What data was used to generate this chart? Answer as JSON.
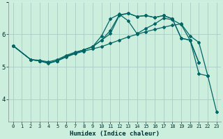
{
  "xlabel": "Humidex (Indice chaleur)",
  "bg_color": "#cceedd",
  "grid_major_color": "#aacccc",
  "grid_minor_color": "#ddf0f0",
  "line_color": "#006666",
  "xlim": [
    -0.5,
    23.5
  ],
  "ylim": [
    3.3,
    7.0
  ],
  "xticks": [
    0,
    1,
    2,
    3,
    4,
    5,
    6,
    7,
    8,
    9,
    10,
    11,
    12,
    13,
    14,
    15,
    16,
    17,
    18,
    19,
    20,
    21,
    22,
    23
  ],
  "yticks": [
    4,
    5,
    6
  ],
  "segments": [
    {
      "x": [
        0,
        2,
        3,
        4,
        5,
        6,
        7,
        8,
        9,
        10,
        11,
        12,
        13,
        14,
        15,
        16,
        17,
        18,
        19,
        20,
        21,
        22,
        23
      ],
      "y": [
        5.65,
        5.22,
        5.18,
        5.12,
        5.18,
        5.3,
        5.4,
        5.48,
        5.55,
        5.62,
        5.72,
        5.82,
        5.92,
        6.0,
        6.08,
        6.15,
        6.22,
        6.28,
        6.32,
        5.95,
        5.75,
        4.72,
        3.6
      ]
    },
    {
      "x": [
        0,
        2,
        3,
        4,
        5,
        6,
        7,
        8,
        9,
        10,
        11,
        12,
        13,
        14,
        15,
        16,
        17,
        18,
        19,
        20,
        21,
        22
      ],
      "y": [
        5.65,
        5.22,
        5.2,
        5.15,
        5.22,
        5.35,
        5.45,
        5.52,
        5.62,
        5.95,
        6.48,
        6.62,
        6.42,
        6.02,
        6.18,
        6.32,
        6.5,
        6.45,
        6.3,
        5.82,
        4.78,
        4.72
      ]
    },
    {
      "x": [
        0,
        2,
        3,
        4,
        5,
        6,
        7,
        8,
        9,
        10,
        11,
        12,
        13,
        14,
        15,
        16,
        17,
        18,
        19,
        20,
        21
      ],
      "y": [
        5.65,
        5.22,
        5.18,
        5.1,
        5.18,
        5.32,
        5.42,
        5.52,
        5.62,
        5.82,
        6.12,
        6.6,
        6.65,
        6.55,
        6.58,
        6.52,
        6.58,
        6.48,
        5.88,
        5.82,
        5.12
      ]
    },
    {
      "x": [
        0,
        2,
        3,
        4,
        5,
        6,
        7,
        8,
        9,
        10,
        11,
        12,
        13,
        14,
        15,
        16,
        17,
        18,
        19,
        20,
        21
      ],
      "y": [
        5.65,
        5.22,
        5.18,
        5.12,
        5.18,
        5.32,
        5.42,
        5.52,
        5.62,
        5.82,
        6.02,
        6.58,
        6.65,
        6.55,
        6.58,
        6.52,
        6.58,
        6.48,
        5.88,
        5.82,
        5.12
      ]
    }
  ]
}
